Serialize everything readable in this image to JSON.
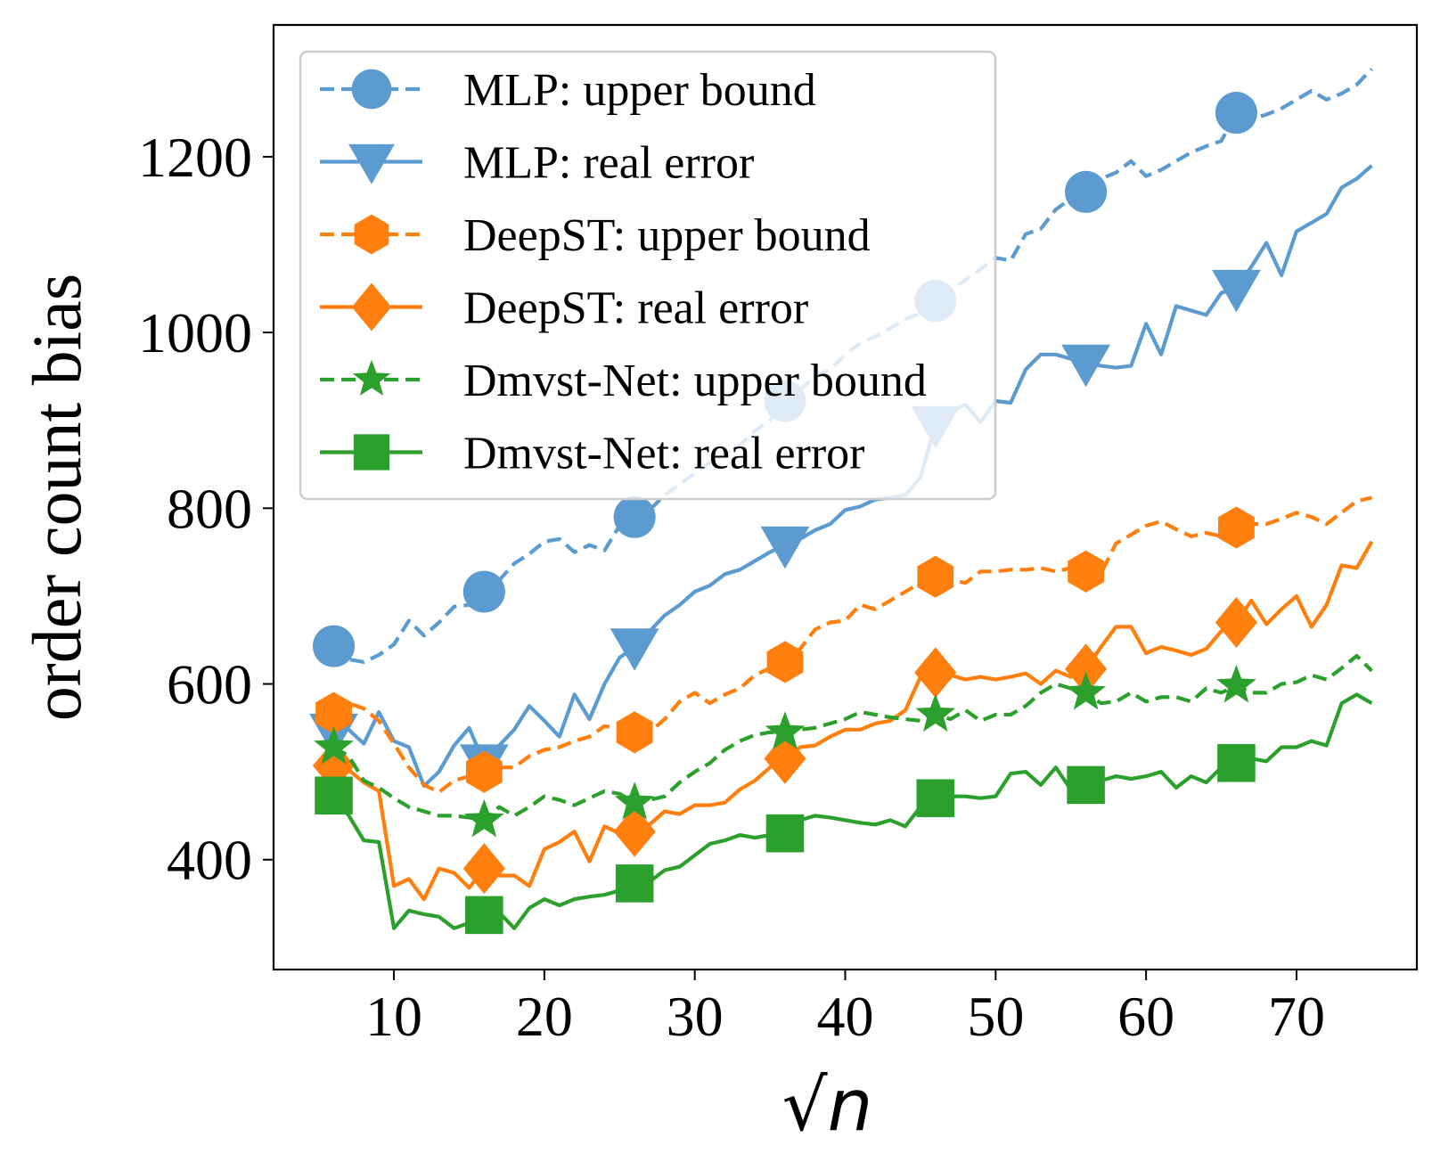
{
  "chart_data": {
    "type": "line",
    "title": "",
    "xlabel": "√n",
    "ylabel": "order count bias",
    "xlim": [
      2,
      78
    ],
    "ylim": [
      275,
      1350
    ],
    "xticks": [
      10,
      20,
      30,
      40,
      50,
      60,
      70
    ],
    "yticks": [
      400,
      600,
      800,
      1000,
      1200
    ],
    "legend_position": "upper-left",
    "x": [
      6,
      7,
      8,
      9,
      10,
      11,
      12,
      13,
      14,
      15,
      16,
      17,
      18,
      19,
      20,
      21,
      22,
      23,
      24,
      25,
      26,
      27,
      28,
      29,
      30,
      31,
      32,
      33,
      34,
      35,
      36,
      37,
      38,
      39,
      40,
      41,
      42,
      43,
      44,
      45,
      46,
      47,
      48,
      49,
      50,
      51,
      52,
      53,
      54,
      55,
      56,
      57,
      58,
      59,
      60,
      61,
      62,
      63,
      64,
      65,
      66,
      67,
      68,
      69,
      70,
      71,
      72,
      73,
      74,
      75
    ],
    "series": [
      {
        "name": "MLP: upper bound",
        "color": "#5b9bd0",
        "style": "dashed",
        "marker": "circle",
        "markers_at": [
          6,
          16,
          26,
          36,
          46,
          56,
          66
        ],
        "values": [
          643,
          628,
          625,
          633,
          645,
          672,
          655,
          670,
          688,
          690,
          705,
          718,
          737,
          748,
          762,
          765,
          750,
          758,
          752,
          780,
          790,
          798,
          815,
          827,
          840,
          852,
          862,
          872,
          888,
          900,
          922,
          935,
          950,
          958,
          975,
          988,
          995,
          1005,
          1015,
          1022,
          1036,
          1048,
          1060,
          1072,
          1085,
          1082,
          1112,
          1118,
          1140,
          1152,
          1160,
          1175,
          1182,
          1195,
          1178,
          1185,
          1195,
          1205,
          1212,
          1218,
          1250,
          1243,
          1248,
          1255,
          1265,
          1275,
          1265,
          1272,
          1282,
          1300
        ]
      },
      {
        "name": "MLP: real error",
        "color": "#5b9bd0",
        "style": "solid",
        "marker": "triangle-down",
        "markers_at": [
          6,
          16,
          26,
          36,
          46,
          56,
          66
        ],
        "values": [
          545,
          548,
          532,
          568,
          535,
          528,
          484,
          500,
          530,
          550,
          510,
          530,
          548,
          575,
          558,
          540,
          588,
          560,
          600,
          630,
          642,
          660,
          678,
          690,
          705,
          712,
          725,
          730,
          740,
          750,
          758,
          765,
          775,
          782,
          798,
          802,
          810,
          812,
          815,
          835,
          895,
          910,
          918,
          898,
          922,
          920,
          958,
          975,
          975,
          970,
          965,
          962,
          960,
          962,
          1010,
          975,
          1030,
          1025,
          1020,
          1045,
          1050,
          1075,
          1102,
          1065,
          1115,
          1125,
          1135,
          1165,
          1175,
          1190
        ]
      },
      {
        "name": "DeepST: upper bound",
        "color": "#ff7f0e",
        "style": "dashed",
        "marker": "hexagon",
        "markers_at": [
          6,
          16,
          26,
          36,
          46,
          56,
          66
        ],
        "values": [
          567,
          578,
          572,
          558,
          532,
          505,
          485,
          477,
          490,
          495,
          500,
          505,
          505,
          518,
          525,
          528,
          535,
          540,
          552,
          550,
          545,
          545,
          560,
          580,
          590,
          578,
          588,
          595,
          610,
          618,
          625,
          640,
          662,
          670,
          672,
          690,
          685,
          695,
          705,
          715,
          722,
          718,
          715,
          728,
          728,
          730,
          730,
          732,
          728,
          732,
          728,
          726,
          760,
          770,
          780,
          785,
          776,
          768,
          772,
          768,
          778,
          782,
          782,
          788,
          795,
          790,
          782,
          795,
          808,
          812
        ]
      },
      {
        "name": "DeepST: real error",
        "color": "#ff7f0e",
        "style": "solid",
        "marker": "diamond",
        "markers_at": [
          6,
          16,
          26,
          36,
          46,
          56,
          66
        ],
        "values": [
          507,
          502,
          488,
          478,
          370,
          378,
          355,
          390,
          385,
          368,
          390,
          382,
          382,
          370,
          412,
          420,
          432,
          398,
          438,
          430,
          432,
          440,
          455,
          452,
          462,
          462,
          465,
          480,
          490,
          505,
          515,
          528,
          530,
          540,
          548,
          548,
          555,
          558,
          570,
          608,
          613,
          610,
          605,
          608,
          605,
          608,
          612,
          600,
          615,
          608,
          617,
          642,
          665,
          665,
          635,
          642,
          638,
          633,
          640,
          660,
          670,
          695,
          668,
          685,
          700,
          665,
          690,
          735,
          732,
          762
        ]
      },
      {
        "name": "Dmvst-Net: upper bound",
        "color": "#2ca02c",
        "style": "dashed",
        "marker": "star",
        "markers_at": [
          6,
          16,
          26,
          36,
          46,
          56,
          66
        ],
        "values": [
          528,
          518,
          490,
          482,
          470,
          460,
          455,
          450,
          450,
          448,
          445,
          460,
          450,
          460,
          472,
          468,
          462,
          470,
          478,
          475,
          465,
          468,
          472,
          488,
          500,
          510,
          525,
          535,
          542,
          545,
          545,
          548,
          550,
          555,
          560,
          568,
          565,
          562,
          560,
          558,
          565,
          560,
          570,
          558,
          565,
          565,
          575,
          590,
          600,
          595,
          590,
          578,
          580,
          590,
          580,
          585,
          585,
          580,
          595,
          590,
          598,
          590,
          590,
          600,
          602,
          610,
          605,
          618,
          632,
          615
        ]
      },
      {
        "name": "Dmvst-Net: real error",
        "color": "#2ca02c",
        "style": "solid",
        "marker": "square",
        "markers_at": [
          6,
          16,
          26,
          36,
          46,
          56,
          66
        ],
        "values": [
          473,
          450,
          422,
          420,
          322,
          342,
          338,
          335,
          322,
          328,
          337,
          340,
          322,
          345,
          355,
          348,
          355,
          358,
          360,
          365,
          373,
          375,
          388,
          392,
          405,
          418,
          422,
          428,
          425,
          428,
          430,
          445,
          450,
          448,
          445,
          442,
          440,
          445,
          438,
          460,
          470,
          472,
          472,
          470,
          472,
          498,
          500,
          485,
          505,
          480,
          485,
          490,
          495,
          492,
          495,
          500,
          482,
          495,
          488,
          505,
          510,
          515,
          512,
          528,
          528,
          535,
          530,
          578,
          588,
          578
        ]
      }
    ]
  }
}
